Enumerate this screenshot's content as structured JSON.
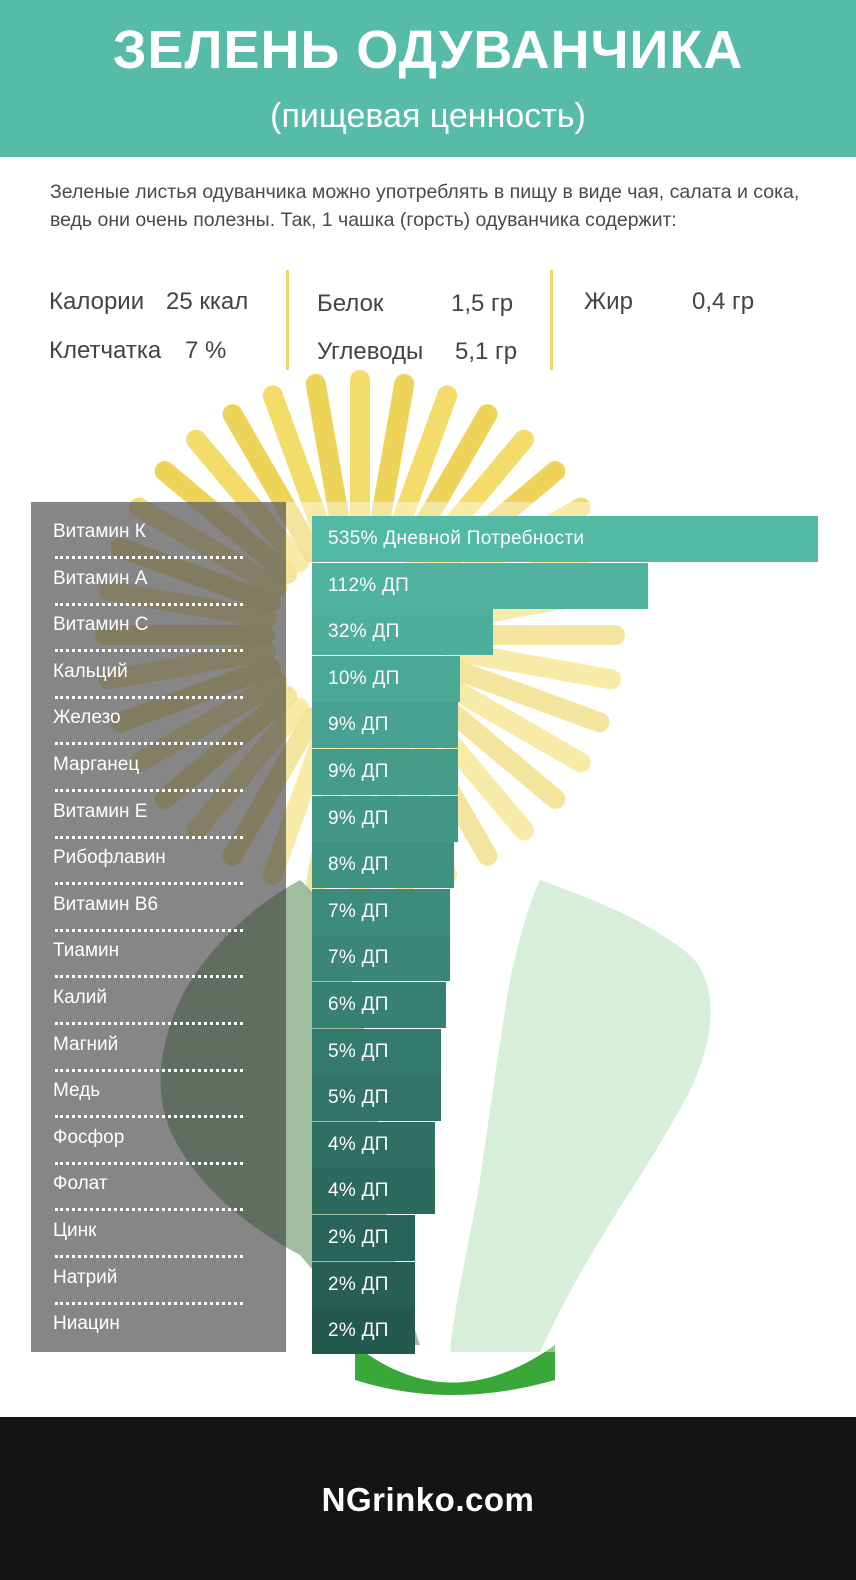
{
  "header": {
    "title": "ЗЕЛЕНЬ ОДУВАНЧИКА",
    "subtitle": "(пищевая ценность)"
  },
  "intro": "Зеленые листья одуванчика можно употреблять в пищу в виде чая, салата и сока, ведь они очень полезны. Так, 1 чашка (горсть) одуванчика содержит:",
  "stats": {
    "calories": {
      "label": "Калории",
      "value": "25 ккал"
    },
    "fiber": {
      "label": "Клетчатка",
      "value": "7 %"
    },
    "protein": {
      "label": "Белок",
      "value": "1,5 гр"
    },
    "carbs": {
      "label": "Углеводы",
      "value": "5,1 гр"
    },
    "fat": {
      "label": "Жир",
      "value": "0,4 гр"
    }
  },
  "colors": {
    "header": "#56bca8",
    "separator": "#f2d868",
    "bar_light": "#52b9a5",
    "bar_dark": "#24594e",
    "footer": "#141414"
  },
  "chart_data": {
    "type": "bar",
    "orientation": "horizontal",
    "categories": [
      "Витамин К",
      "Витамин А",
      "Витамин С",
      "Кальций",
      "Железо",
      "Марганец",
      "Витамин Е",
      "Рибофлавин",
      "Витамин В6",
      "Тиамин",
      "Калий",
      "Магний",
      "Медь",
      "Фосфор",
      "Фолат",
      "Цинк",
      "Натрий",
      "Ниацин"
    ],
    "values": [
      535,
      112,
      32,
      10,
      9,
      9,
      9,
      8,
      7,
      7,
      6,
      5,
      5,
      4,
      4,
      2,
      2,
      2
    ],
    "value_labels": [
      "535%  Дневной Потребности",
      "112%  ДП",
      "32%  ДП",
      "10%  ДП",
      "9%  ДП",
      "9%  ДП",
      "9%  ДП",
      "8%  ДП",
      "7%  ДП",
      "7%  ДП",
      "6%  ДП",
      "5%  ДП",
      "5%  ДП",
      "4%  ДП",
      "4%  ДП",
      "2%  ДП",
      "2%  ДП",
      "2% ДП"
    ],
    "unit": "% ДП"
  },
  "footer": {
    "site": "NGrinko.com"
  }
}
